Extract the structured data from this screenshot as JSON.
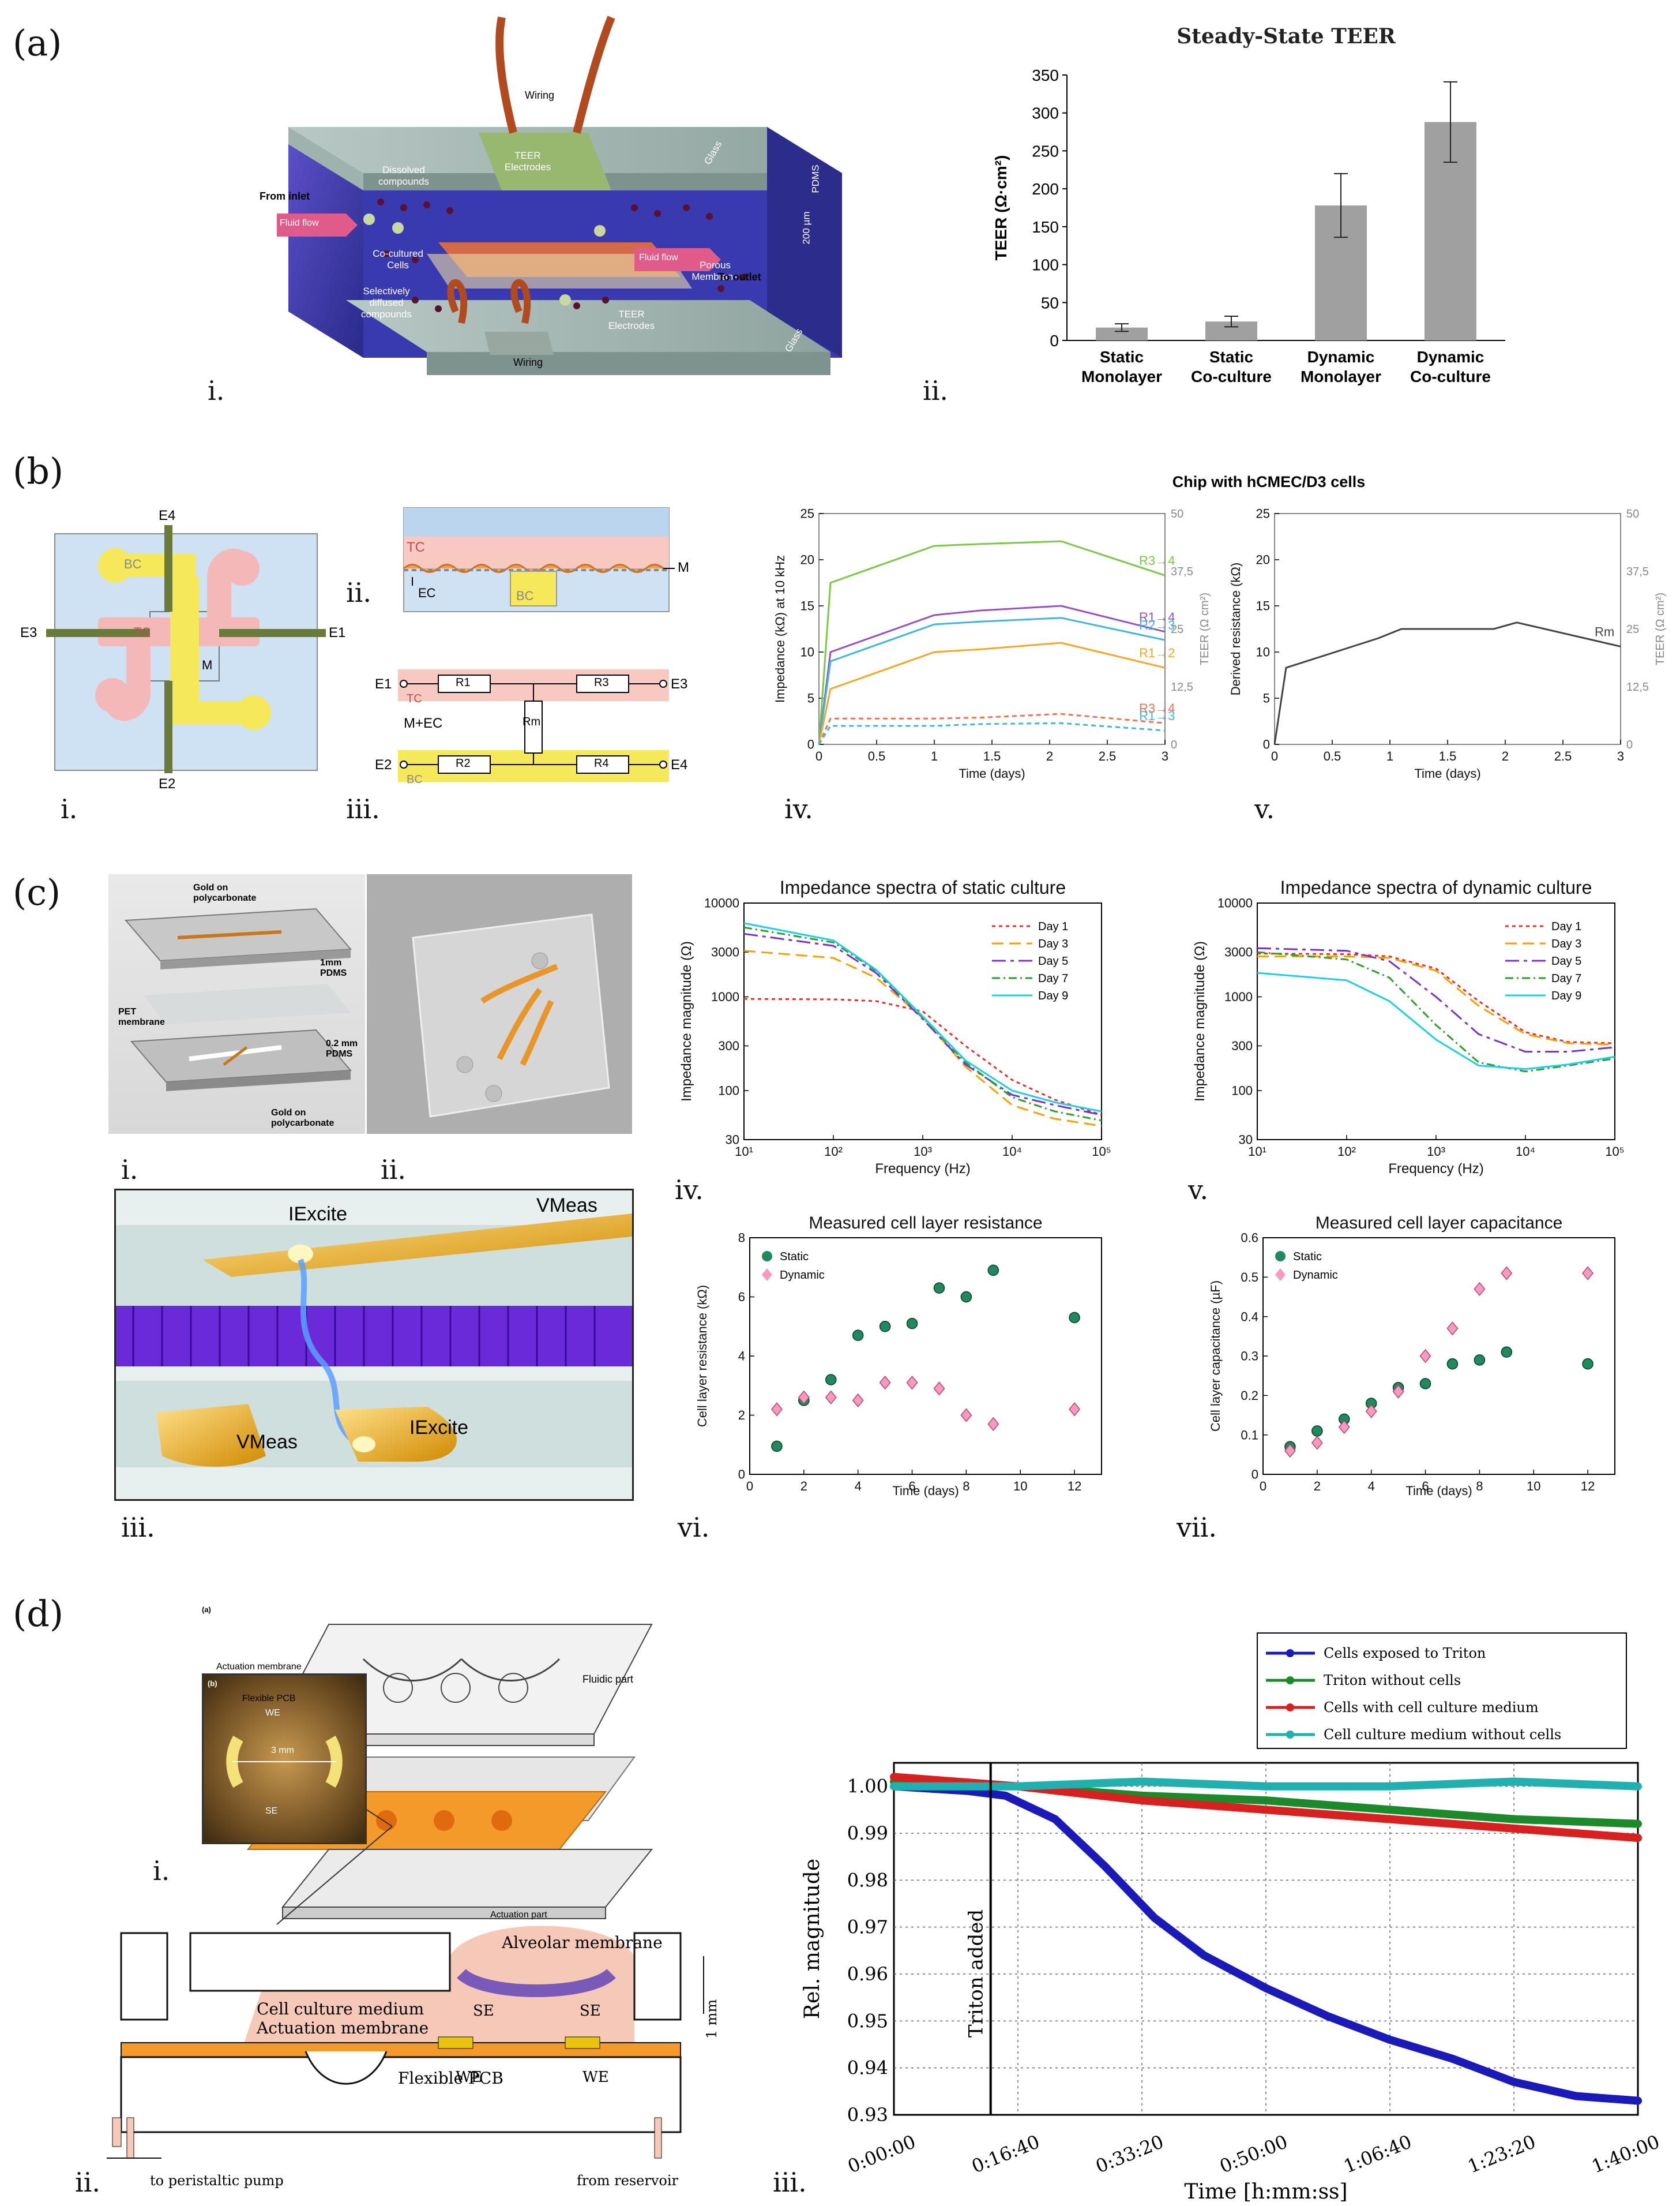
{
  "panel_labels": {
    "a": "(a)",
    "b": "(b)",
    "c": "(c)",
    "d": "(d)"
  },
  "a": {
    "i_label": "i.",
    "ii_label": "ii.",
    "schematic": {
      "wiring_top": "Wiring",
      "teer_electrodes_top": "TEER Electrodes",
      "dissolved": "Dissolved compounds",
      "from_inlet": "From inlet",
      "fluid_flow_in": "Fluid flow",
      "cocultured": "Co-cultured Cells",
      "porous": "Porous Membrane",
      "fluid_flow_out": "Fluid flow",
      "to_outlet": "To outlet",
      "selectively": "Selectively diffused compounds",
      "teer_electrodes_bot": "TEER Electrodes",
      "wiring_bot": "Wiring",
      "glass_top": "Glass",
      "glass_bot": "Glass",
      "pdms": "PDMS",
      "height": "200 µm"
    }
  },
  "b": {
    "i_label": "i.",
    "ii_label": "ii.",
    "iii_label": "iii.",
    "iv_label": "iv.",
    "v_label": "v.",
    "layout": {
      "e1": "E1",
      "e2": "E2",
      "e3": "E3",
      "e4": "E4",
      "bc": "BC",
      "tc": "TC",
      "m": "M"
    },
    "cross": {
      "tc": "TC",
      "tc2": "TC",
      "ec": "EC",
      "m": "M",
      "bc": "BC"
    },
    "circuit": {
      "e1": "E1",
      "e2": "E2",
      "e3": "E3",
      "e4": "E4",
      "r1": "R1",
      "r2": "R2",
      "r3": "R3",
      "r4": "R4",
      "rm": "Rm",
      "mec": "M+EC",
      "tc": "TC",
      "bc": "BC"
    },
    "charts_title": "Chip with hCMEC/D3 cells"
  },
  "c": {
    "i_label": "i.",
    "ii_label": "ii.",
    "iii_label": "iii.",
    "iv_label": "iv.",
    "v_label": "v.",
    "vi_label": "vi.",
    "vii_label": "vii.",
    "device": {
      "gold_top": "Gold on polycarbonate",
      "pdms1": "1mm PDMS",
      "pet": "PET membrane",
      "pdms2": "0.2 mm PDMS",
      "gold_bot": "Gold on polycarbonate"
    },
    "electrode": {
      "iexcite_top": "IExcite",
      "vmeas_top": "VMeas",
      "vmeas_bot": "VMeas",
      "iexcite_bot": "IExcite"
    }
  },
  "d": {
    "i_label": "i.",
    "ii_label": "ii.",
    "iii_label": "iii.",
    "exploded": {
      "a": "(a)",
      "b": "(b)",
      "fluidic": "Fluidic part",
      "act_mem": "Actuation membrane",
      "pcb": "Flexible PCB",
      "act_part": "Actuation part",
      "we": "WE",
      "se": "SE",
      "mm": "3 mm"
    },
    "section": {
      "alveolar": "Alveolar membrane",
      "medium": "Cell culture medium",
      "act": "Actuation membrane",
      "pcb": "Flexible PCB",
      "se1": "SE",
      "se2": "SE",
      "we1": "WE",
      "we2": "WE",
      "onemm": "1 mm",
      "pump": "to peristaltic pump",
      "reservoir": "from reservoir"
    }
  },
  "chart_data": [
    {
      "id": "a_ii",
      "type": "bar",
      "title": "Steady-State TEER",
      "ylabel": "TEER (Ω·cm²)",
      "ylim": [
        0,
        350
      ],
      "yticks": [
        0,
        50,
        100,
        150,
        200,
        250,
        300,
        350
      ],
      "categories": [
        "Static Monolayer",
        "Static Co-culture",
        "Dynamic Monolayer",
        "Dynamic Co-culture"
      ],
      "values": [
        17,
        25,
        178,
        288
      ],
      "errors": [
        5,
        7,
        42,
        53
      ],
      "bar_color": "#a0a0a0"
    },
    {
      "id": "b_iv",
      "type": "line",
      "xlabel": "Time (days)",
      "ylabel": "Impedance (kΩ) at 10 kHz",
      "y2label": "TEER (Ω cm²)",
      "xlim": [
        0,
        3
      ],
      "ylim": [
        0,
        25
      ],
      "xticks": [
        0,
        0.5,
        1,
        1.5,
        2,
        2.5,
        3
      ],
      "xtick_labels": [
        "0",
        "0.5",
        "1",
        "1.5",
        "2",
        "2.5",
        "3"
      ],
      "yticks": [
        0,
        5,
        10,
        15,
        20,
        25
      ],
      "y2ticks": [
        0,
        12.5,
        25,
        37.5,
        50
      ],
      "y2tick_labels": [
        "0",
        "12,5",
        "25",
        "37,5",
        "50"
      ],
      "series": [
        {
          "name": "R3→4",
          "color": "#7ac943",
          "dash": "",
          "x": [
            0,
            0.1,
            1,
            1.4,
            2.1,
            3
          ],
          "y": [
            0,
            17.5,
            21.5,
            21.7,
            22,
            18.3
          ]
        },
        {
          "name": "R1→4",
          "color": "#9b4fc0",
          "dash": "",
          "x": [
            0,
            0.1,
            1,
            1.4,
            2.1,
            3
          ],
          "y": [
            0,
            10,
            14,
            14.5,
            15,
            12.2
          ]
        },
        {
          "name": "R2→3",
          "color": "#3fb6e0",
          "dash": "",
          "x": [
            0,
            0.1,
            1,
            1.4,
            2.1,
            3
          ],
          "y": [
            0,
            9,
            13,
            13.3,
            13.7,
            11.3
          ]
        },
        {
          "name": "R1→2",
          "color": "#f5a623",
          "dash": "",
          "x": [
            0,
            0.1,
            1,
            1.4,
            2.1,
            3
          ],
          "y": [
            0,
            6,
            10,
            10.3,
            11,
            8.3
          ]
        },
        {
          "name": "R3→4",
          "color": "#f07050",
          "dash": "8,6",
          "x": [
            0,
            0.1,
            1,
            1.4,
            2.1,
            3
          ],
          "y": [
            0,
            2.8,
            2.8,
            2.9,
            3.3,
            2.3
          ]
        },
        {
          "name": "R1→3",
          "color": "#3fb6e0",
          "dash": "8,6",
          "x": [
            0,
            0.1,
            1,
            1.4,
            2.1,
            3
          ],
          "y": [
            0,
            2,
            2,
            2.2,
            2.3,
            1.5
          ]
        }
      ]
    },
    {
      "id": "b_v",
      "type": "line",
      "xlabel": "Time (days)",
      "ylabel": "Derived resistance (kΩ)",
      "y2label": "TEER (Ω cm²)",
      "xlim": [
        0,
        3
      ],
      "ylim": [
        0,
        25
      ],
      "xticks": [
        0,
        0.5,
        1,
        1.5,
        2,
        2.5,
        3
      ],
      "xtick_labels": [
        "0",
        "0.5",
        "1",
        "1.5",
        "2",
        "2.5",
        "3"
      ],
      "yticks": [
        0,
        5,
        10,
        15,
        20,
        25
      ],
      "y2ticks": [
        0,
        12.5,
        25,
        37.5,
        50
      ],
      "y2tick_labels": [
        "0",
        "12,5",
        "25",
        "37,5",
        "50"
      ],
      "series": [
        {
          "name": "Rm",
          "color": "#444444",
          "dash": "",
          "x": [
            0,
            0.1,
            0.9,
            1.1,
            1.9,
            2.1,
            3
          ],
          "y": [
            0,
            8.3,
            11.5,
            12.5,
            12.5,
            13.2,
            10.6
          ]
        }
      ]
    },
    {
      "id": "c_iv",
      "type": "line",
      "title": "Impedance spectra of static culture",
      "xlabel": "Frequency (Hz)",
      "ylabel": "Impedance magnitude (Ω)",
      "xscale": "log",
      "yscale": "log",
      "xlim": [
        10,
        100000
      ],
      "ylim": [
        30,
        10000
      ],
      "xticks": [
        10,
        100,
        1000,
        10000,
        100000
      ],
      "xtick_labels": [
        "10¹",
        "10²",
        "10³",
        "10⁴",
        "10⁵"
      ],
      "yticks": [
        30,
        100,
        300,
        1000,
        3000,
        10000
      ],
      "ytick_labels": [
        "30",
        "100",
        "300",
        "1000",
        "3000",
        "10000"
      ],
      "series": [
        {
          "name": "Day 1",
          "color": "#e8302a",
          "dash": "6,6",
          "x": [
            10,
            100,
            300,
            1000,
            3000,
            10000,
            30000,
            100000
          ],
          "y": [
            950,
            940,
            900,
            700,
            300,
            130,
            80,
            55
          ]
        },
        {
          "name": "Day 3",
          "color": "#f5a000",
          "dash": "20,10",
          "x": [
            10,
            100,
            300,
            1000,
            3000,
            10000,
            30000,
            100000
          ],
          "y": [
            3100,
            2600,
            1600,
            600,
            180,
            70,
            50,
            42
          ]
        },
        {
          "name": "Day 5",
          "color": "#7a2fd0",
          "dash": "24,8,6,8",
          "x": [
            10,
            100,
            300,
            1000,
            3000,
            10000,
            30000,
            100000
          ],
          "y": [
            4700,
            3500,
            1800,
            580,
            190,
            90,
            70,
            55
          ]
        },
        {
          "name": "Day 7",
          "color": "#2aa02a",
          "dash": "14,6,3,6",
          "x": [
            10,
            100,
            300,
            1000,
            3000,
            10000,
            30000,
            100000
          ],
          "y": [
            5500,
            3800,
            1900,
            600,
            200,
            85,
            60,
            48
          ]
        },
        {
          "name": "Day 9",
          "color": "#1ad0e8",
          "dash": "",
          "x": [
            10,
            100,
            300,
            1000,
            3000,
            10000,
            30000,
            100000
          ],
          "y": [
            6100,
            4000,
            1950,
            620,
            210,
            100,
            75,
            60
          ]
        }
      ]
    },
    {
      "id": "c_v",
      "type": "line",
      "title": "Impedance spectra of dynamic culture",
      "xlabel": "Frequency (Hz)",
      "ylabel": "Impedance magnitude (Ω)",
      "xscale": "log",
      "yscale": "log",
      "xlim": [
        10,
        100000
      ],
      "ylim": [
        30,
        10000
      ],
      "xticks": [
        10,
        100,
        1000,
        10000,
        100000
      ],
      "xtick_labels": [
        "10¹",
        "10²",
        "10³",
        "10⁴",
        "10⁵"
      ],
      "yticks": [
        30,
        100,
        300,
        1000,
        3000,
        10000
      ],
      "ytick_labels": [
        "30",
        "100",
        "300",
        "1000",
        "3000",
        "10000"
      ],
      "series": [
        {
          "name": "Day 1",
          "color": "#e8302a",
          "dash": "6,6",
          "x": [
            10,
            100,
            300,
            1000,
            3000,
            10000,
            30000,
            100000
          ],
          "y": [
            2900,
            2850,
            2700,
            2000,
            900,
            420,
            330,
            320
          ]
        },
        {
          "name": "Day 3",
          "color": "#f5a000",
          "dash": "20,10",
          "x": [
            10,
            100,
            300,
            1000,
            3000,
            10000,
            30000,
            100000
          ],
          "y": [
            2700,
            2700,
            2600,
            1900,
            800,
            400,
            320,
            310
          ]
        },
        {
          "name": "Day 5",
          "color": "#7a2fd0",
          "dash": "24,8,6,8",
          "x": [
            10,
            100,
            300,
            1000,
            3000,
            10000,
            30000,
            100000
          ],
          "y": [
            3300,
            3100,
            2400,
            1000,
            400,
            260,
            260,
            290
          ]
        },
        {
          "name": "Day 7",
          "color": "#2aa02a",
          "dash": "14,6,3,6",
          "x": [
            10,
            100,
            300,
            1000,
            3000,
            10000,
            30000,
            100000
          ],
          "y": [
            3000,
            2500,
            1600,
            500,
            200,
            160,
            185,
            220
          ]
        },
        {
          "name": "Day 9",
          "color": "#1ad0e8",
          "dash": "",
          "x": [
            10,
            100,
            300,
            1000,
            3000,
            10000,
            30000,
            100000
          ],
          "y": [
            1800,
            1500,
            900,
            350,
            185,
            170,
            190,
            230
          ]
        }
      ]
    },
    {
      "id": "c_vi",
      "type": "scatter",
      "title": "Measured cell layer resistance",
      "xlabel": "Time (days)",
      "ylabel": "Cell layer resistance (kΩ)",
      "xlim": [
        0,
        13
      ],
      "ylim": [
        0,
        8
      ],
      "xticks": [
        0,
        2,
        4,
        6,
        8,
        10,
        12
      ],
      "yticks": [
        0,
        2,
        4,
        6,
        8
      ],
      "series": [
        {
          "name": "Static",
          "color": "#1f8a5e",
          "marker": "circle",
          "x": [
            1,
            2,
            3,
            4,
            5,
            6,
            7,
            8,
            9,
            12
          ],
          "y": [
            0.95,
            2.5,
            3.2,
            4.7,
            5,
            5.1,
            6.3,
            6,
            6.9,
            5.3
          ]
        },
        {
          "name": "Dynamic",
          "color": "#f59ac0",
          "marker": "diamond",
          "x": [
            1,
            2,
            3,
            4,
            5,
            6,
            7,
            8,
            9,
            12
          ],
          "y": [
            2.2,
            2.6,
            2.6,
            2.5,
            3.1,
            3.1,
            2.9,
            2,
            1.7,
            2.2
          ]
        }
      ]
    },
    {
      "id": "c_vii",
      "type": "scatter",
      "title": "Measured cell layer capacitance",
      "xlabel": "Time (days)",
      "ylabel": "Cell layer capacitance (µF)",
      "xlim": [
        0,
        13
      ],
      "ylim": [
        0,
        0.6
      ],
      "xticks": [
        0,
        2,
        4,
        6,
        8,
        10,
        12
      ],
      "yticks": [
        0,
        0.1,
        0.2,
        0.3,
        0.4,
        0.5,
        0.6
      ],
      "series": [
        {
          "name": "Static",
          "color": "#1f8a5e",
          "marker": "circle",
          "x": [
            1,
            2,
            3,
            4,
            5,
            6,
            7,
            8,
            9,
            12
          ],
          "y": [
            0.07,
            0.11,
            0.14,
            0.18,
            0.22,
            0.23,
            0.28,
            0.29,
            0.31,
            0.28
          ]
        },
        {
          "name": "Dynamic",
          "color": "#f59ac0",
          "marker": "diamond",
          "x": [
            1,
            2,
            3,
            4,
            5,
            6,
            7,
            8,
            9,
            12
          ],
          "y": [
            0.06,
            0.08,
            0.12,
            0.16,
            0.21,
            0.3,
            0.37,
            0.47,
            0.51,
            0.51
          ]
        }
      ]
    },
    {
      "id": "d_iii",
      "type": "line",
      "xlabel": "Time [h:mm:ss]",
      "ylabel": "Rel. magnitude",
      "xlim": [
        0,
        6000
      ],
      "ylim": [
        0.93,
        1.005
      ],
      "xticks": [
        0,
        1000,
        2000,
        3000,
        4000,
        5000,
        6000
      ],
      "xtick_labels": [
        "0:00:00",
        "0:16:40",
        "0:33:20",
        "0:50:00",
        "1:06:40",
        "1:23:20",
        "1:40:00"
      ],
      "yticks": [
        0.93,
        0.94,
        0.95,
        0.96,
        0.97,
        0.98,
        0.99,
        1.0
      ],
      "ytick_labels": [
        "0.93",
        "0.94",
        "0.95",
        "0.96",
        "0.97",
        "0.98",
        "0.99",
        "1.00"
      ],
      "annotation": "Triton added",
      "annotation_x": 780,
      "series": [
        {
          "name": "Cells exposed to Triton",
          "color": "#1a1ab8",
          "x": [
            0,
            600,
            900,
            1300,
            1700,
            2100,
            2500,
            3000,
            3500,
            4000,
            4500,
            5000,
            5500,
            6000
          ],
          "y": [
            1.0,
            0.999,
            0.998,
            0.993,
            0.983,
            0.972,
            0.964,
            0.957,
            0.951,
            0.946,
            0.942,
            0.937,
            0.934,
            0.933
          ]
        },
        {
          "name": "Triton without cells",
          "color": "#1a8a2a",
          "x": [
            0,
            1000,
            2000,
            3000,
            4000,
            5000,
            6000
          ],
          "y": [
            1.001,
            1.0,
            0.998,
            0.997,
            0.995,
            0.993,
            0.992
          ]
        },
        {
          "name": "Cells with cell culture medium",
          "color": "#d82020",
          "x": [
            0,
            1000,
            2000,
            3000,
            4000,
            5000,
            6000
          ],
          "y": [
            1.002,
            1.0,
            0.997,
            0.995,
            0.993,
            0.991,
            0.989
          ]
        },
        {
          "name": "Cell culture medium without cells",
          "color": "#20b0b0",
          "x": [
            0,
            1000,
            2000,
            3000,
            4000,
            5000,
            6000
          ],
          "y": [
            1.0,
            1.0,
            1.001,
            1.0,
            1.0,
            1.001,
            1.0
          ]
        }
      ]
    }
  ]
}
